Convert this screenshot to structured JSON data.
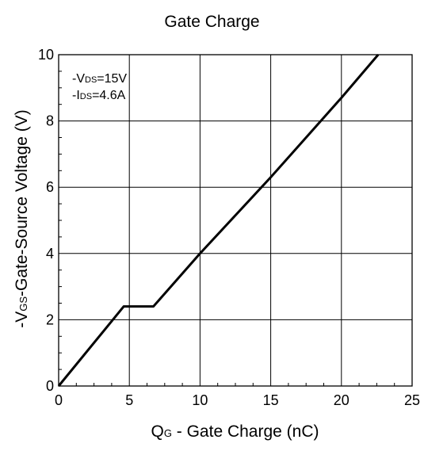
{
  "chart_data": {
    "type": "line",
    "title": "Gate Charge",
    "xlabel": {
      "main": "Q",
      "sub": "G",
      "rest": " - Gate Charge (nC)"
    },
    "ylabel": {
      "prefix": "-V",
      "sub": "GS",
      "rest": "-Gate-Source Voltage (V)"
    },
    "xlim": [
      0,
      25
    ],
    "ylim": [
      0,
      10
    ],
    "xticks": [
      0,
      5,
      10,
      15,
      20,
      25
    ],
    "yticks": [
      0,
      2,
      4,
      6,
      8,
      10
    ],
    "x_minor_step": 1.25,
    "y_minor_step": 0.5,
    "grid": true,
    "annotations": [
      {
        "prefix": "-V",
        "sub": "DS",
        "rest": "=15V"
      },
      {
        "prefix": "-I",
        "sub": "DS",
        "rest": "=4.6A"
      }
    ],
    "series": [
      {
        "color": "#000000",
        "x": [
          0,
          4.6,
          6.7,
          10,
          15,
          20,
          22.6
        ],
        "y": [
          0,
          2.4,
          2.4,
          4.0,
          6.3,
          8.7,
          10.0
        ]
      }
    ]
  }
}
